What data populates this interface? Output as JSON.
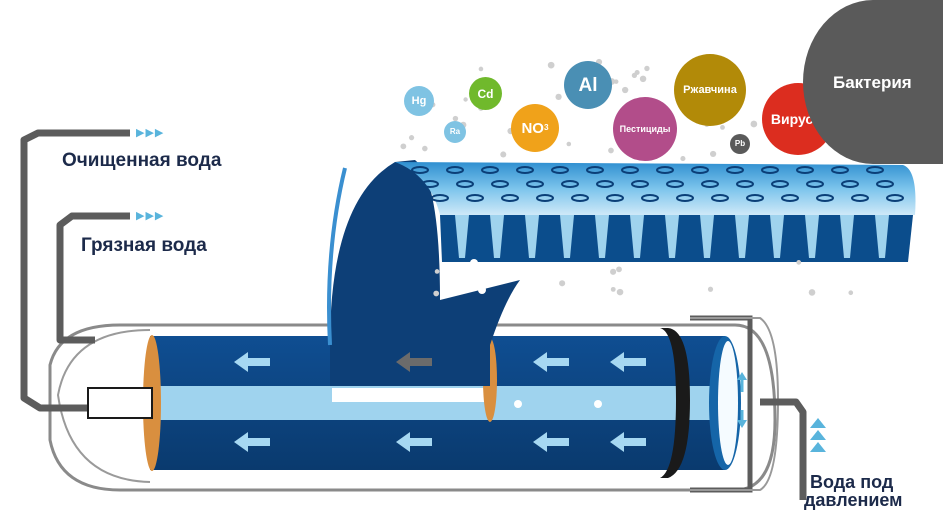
{
  "labels": {
    "clean_water": "Очищенная вода",
    "dirty_water": "Грязная вода",
    "pressure_water_line1": "Вода под",
    "pressure_water_line2": "давлением"
  },
  "flow_arrows": "▶▶▶",
  "contaminants": [
    {
      "text": "Hg",
      "color": "#7fc3e3"
    },
    {
      "text": "Ra",
      "color": "#7fc3e3"
    },
    {
      "text": "Cd",
      "color": "#70b92c"
    },
    {
      "text": "NO",
      "sub": "3",
      "color": "#f0a21a"
    },
    {
      "text": "Al",
      "color": "#4a8fb4"
    },
    {
      "text": "Пестициды",
      "color": "#b24d8a"
    },
    {
      "text": "Ржавчина",
      "color": "#b28a08"
    },
    {
      "text": "Pb",
      "color": "#5a5a5a"
    },
    {
      "text": "Вирусы",
      "color": "#dc2d1f"
    },
    {
      "text": "Бактерия",
      "color": "#5a5a5a"
    }
  ],
  "colors": {
    "dark_blue": "#0e3f78",
    "membrane_blue": "#0b4d8c",
    "light_blue": "#9fd3ee",
    "pipe_gray": "#5c5c5c",
    "cap_orange": "#d98f3f"
  }
}
